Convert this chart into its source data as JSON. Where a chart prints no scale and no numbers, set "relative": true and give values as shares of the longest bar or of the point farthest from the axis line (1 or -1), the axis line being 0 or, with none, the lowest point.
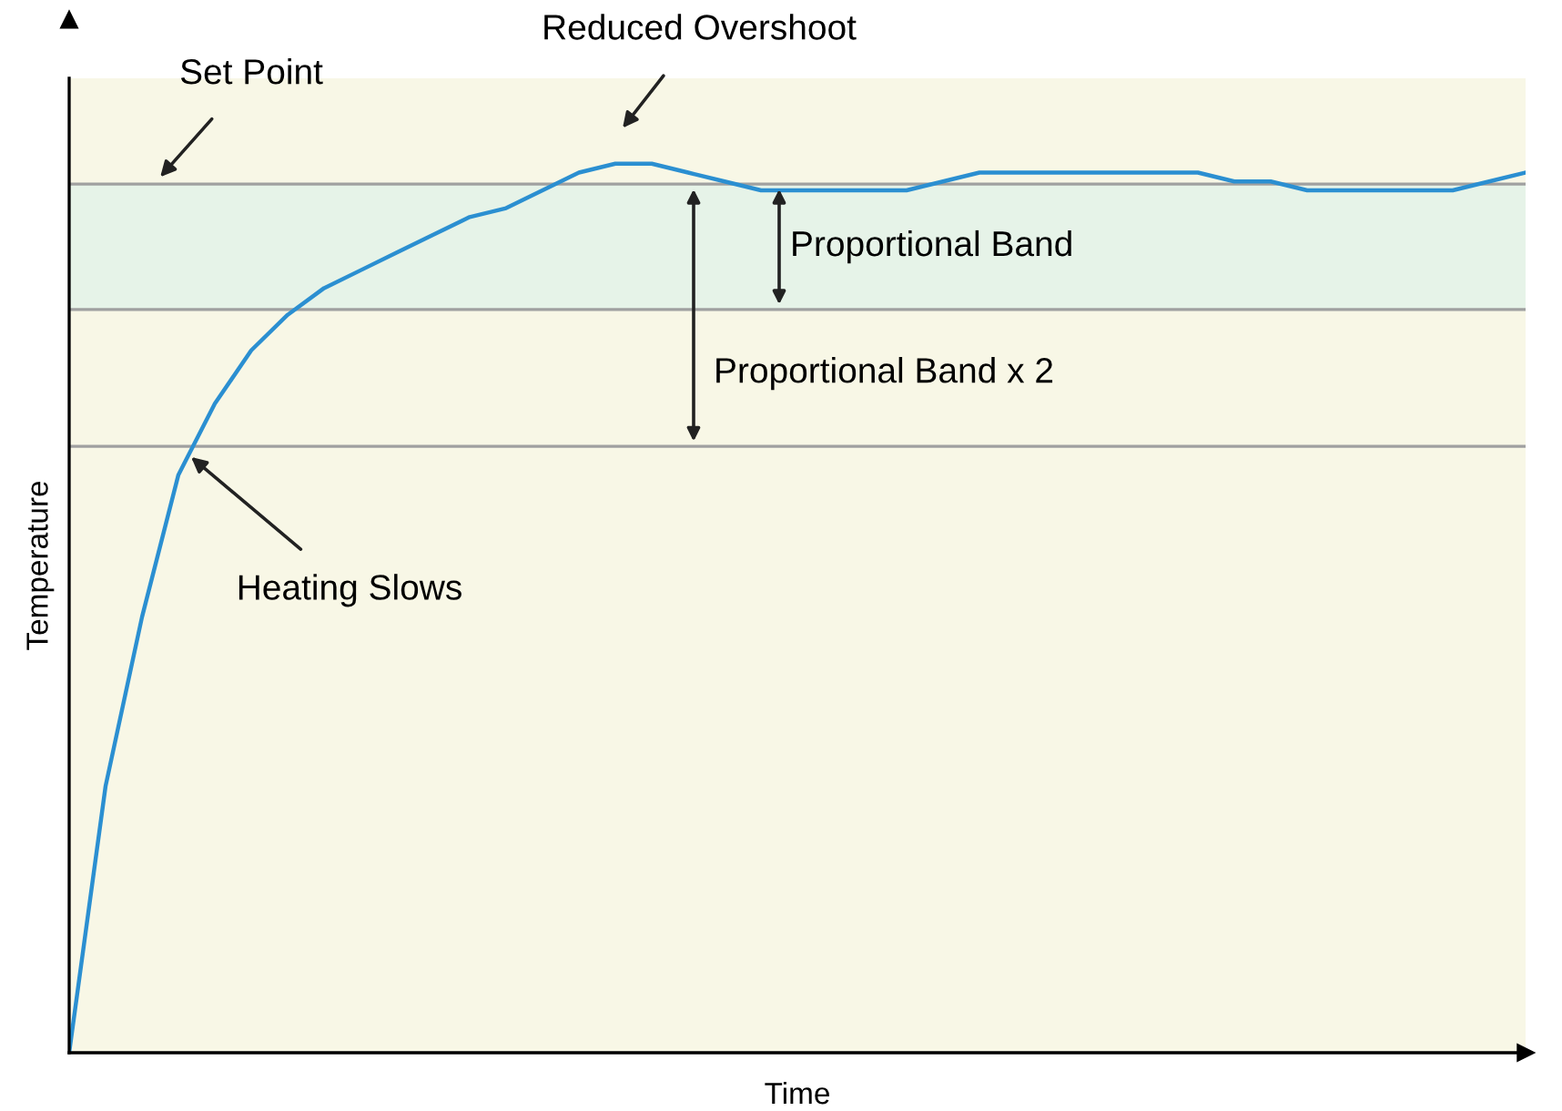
{
  "chart_data": {
    "type": "line",
    "relative": true,
    "xlabel": "Time",
    "ylabel": "Temperature",
    "line_style": "solid",
    "categories": [
      null,
      null,
      null,
      null,
      null,
      null,
      null,
      null,
      null,
      null,
      null,
      null,
      null,
      null,
      null,
      null,
      null,
      null,
      null,
      null,
      null,
      null,
      null,
      null,
      null,
      null,
      null,
      null,
      null,
      null,
      null,
      null,
      null,
      null,
      null,
      null,
      null,
      null,
      null,
      null,
      null
    ],
    "series": [
      {
        "color": "#2b8fd1",
        "values": [
          0,
          0.3,
          0.49,
          0.65,
          0.73,
          0.79,
          0.83,
          0.86,
          0.88,
          0.9,
          0.92,
          0.94,
          0.95,
          0.97,
          0.99,
          1.0,
          1.0,
          0.99,
          0.98,
          0.97,
          0.97,
          0.97,
          0.97,
          0.97,
          0.98,
          0.99,
          0.99,
          0.99,
          0.99,
          0.99,
          0.99,
          0.99,
          0.98,
          0.98,
          0.97,
          0.97,
          0.97,
          0.97,
          0.97,
          0.98,
          0.99
        ]
      }
    ],
    "ref_lines": [
      {
        "axis": "y",
        "value": 0.977,
        "label": "Set Point",
        "color": "#a0a0a0"
      },
      {
        "axis": "y",
        "value": 0.836,
        "color": "#a0a0a0"
      },
      {
        "axis": "y",
        "value": 0.682,
        "color": "#a0a0a0"
      }
    ],
    "bands": [
      {
        "axis": "y",
        "from": 0.836,
        "to": 0.977,
        "label": "Proportional Band",
        "color": "#e6f3e8"
      }
    ],
    "annotations": [
      "Reduced Overshoot",
      "Heating Slows",
      "Proportional Band x 2"
    ]
  }
}
